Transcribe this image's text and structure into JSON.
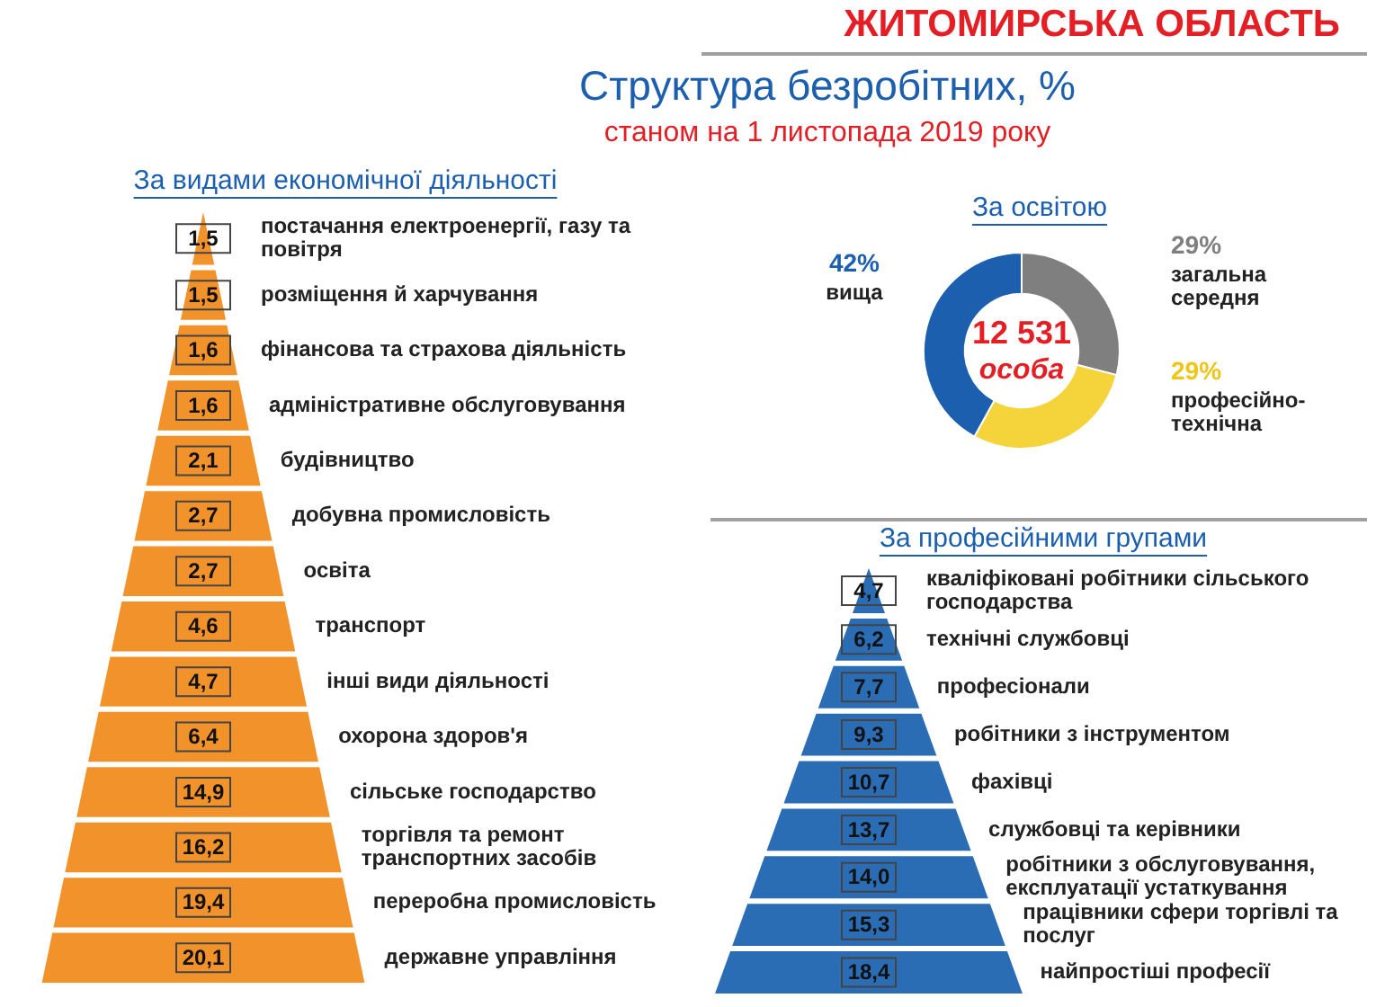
{
  "chart_data": [
    {
      "type": "other",
      "title": "Структура безробітних, %",
      "subtitle": "станом на 1 листопада 2019 року",
      "annotations": [
        "ЖИТОМИРСЬКА ОБЛАСТЬ"
      ]
    },
    {
      "type": "other",
      "title": "За видами економічної діяльності",
      "color": "#f2922a",
      "value_labels": [
        "1,5",
        "1,5",
        "1,6",
        "1,6",
        "2,1",
        "2,7",
        "2,7",
        "4,6",
        "4,7",
        "6,4",
        "14,9",
        "16,2",
        "19,4",
        "20,1"
      ],
      "categories": [
        "постачання електроенергії, газу та повітря",
        "розміщення й харчування",
        "фінансова та страхова діяльність",
        "адміністративне обслуговування",
        "будівництво",
        "добувна промисловість",
        "освіта",
        "транспорт",
        "інші види діяльності",
        "охорона здоров'я",
        "сільське господарство",
        "торгівля та ремонт транспортних засобів",
        "переробна промисловість",
        "державне управління"
      ],
      "values": [
        1.5,
        1.5,
        1.6,
        1.6,
        2.1,
        2.7,
        2.7,
        4.6,
        4.7,
        6.4,
        14.9,
        16.2,
        19.4,
        20.1
      ]
    },
    {
      "type": "donut",
      "title": "За освітою",
      "categories": [
        "загальна середня",
        "професійно-технічна",
        "вища"
      ],
      "values": [
        29,
        29,
        42
      ],
      "colors": [
        "#7f7f7f",
        "#f5d33a",
        "#1b5fae"
      ],
      "value_labels": [
        "29%",
        "29%",
        "42%"
      ],
      "annotations": [
        "12 531",
        "особа"
      ]
    },
    {
      "type": "other",
      "title": "За професійними групами",
      "color": "#2a6db5",
      "value_labels": [
        "4,7",
        "6,2",
        "7,7",
        "9,3",
        "10,7",
        "13,7",
        "14,0",
        "15,3",
        "18,4"
      ],
      "categories": [
        "кваліфіковані робітники сільського господарства",
        "технічні службовці",
        "професіонали",
        "робітники з інструментом",
        "фахівці",
        "службовці та керівники",
        "робітники з обслуговування, експлуатації устаткування",
        "працівники сфери торгівлі та послуг",
        "найпростіші професії"
      ],
      "values": [
        4.7,
        6.2,
        7.7,
        9.3,
        10.7,
        13.7,
        14.0,
        15.3,
        18.4
      ]
    }
  ]
}
